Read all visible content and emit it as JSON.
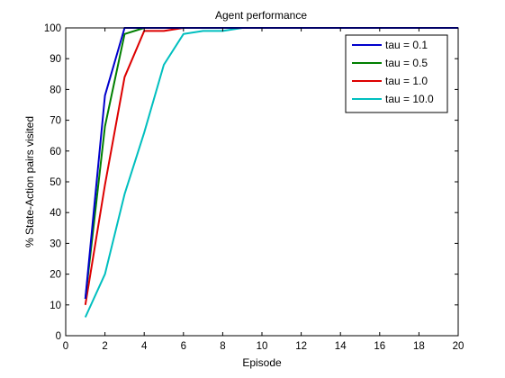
{
  "chart_data": {
    "type": "line",
    "title": "Agent performance",
    "xlabel": "Episode",
    "ylabel": "% State-Action pairs visited",
    "xlim": [
      0,
      20
    ],
    "ylim": [
      0,
      100
    ],
    "xticks": [
      0,
      2,
      4,
      6,
      8,
      10,
      12,
      14,
      16,
      18,
      20
    ],
    "yticks": [
      0,
      10,
      20,
      30,
      40,
      50,
      60,
      70,
      80,
      90,
      100
    ],
    "grid": false,
    "legend_position": "top-right",
    "series": [
      {
        "name": "tau = 0.1",
        "color": "#0000cc",
        "x": [
          1,
          2,
          3,
          4,
          5,
          6,
          7,
          8,
          9,
          10,
          11,
          12,
          13,
          14,
          15,
          16,
          17,
          18,
          19,
          20
        ],
        "y": [
          12,
          78,
          100,
          100,
          100,
          100,
          100,
          100,
          100,
          100,
          100,
          100,
          100,
          100,
          100,
          100,
          100,
          100,
          100,
          100
        ]
      },
      {
        "name": "tau = 0.5",
        "color": "#007f00",
        "x": [
          1,
          2,
          3,
          4,
          5,
          6,
          7,
          8,
          9,
          10,
          11,
          12,
          13,
          14,
          15,
          16,
          17,
          18,
          19,
          20
        ],
        "y": [
          12,
          68,
          98,
          100,
          100,
          100,
          100,
          100,
          100,
          100,
          100,
          100,
          100,
          100,
          100,
          100,
          100,
          100,
          100,
          100
        ]
      },
      {
        "name": "tau = 1.0",
        "color": "#dd0000",
        "x": [
          1,
          2,
          3,
          4,
          5,
          6,
          7,
          8,
          9,
          10,
          11,
          12,
          13,
          14,
          15,
          16,
          17,
          18,
          19,
          20
        ],
        "y": [
          10,
          49,
          84,
          99,
          99,
          100,
          100,
          100,
          100,
          100,
          100,
          100,
          100,
          100,
          100,
          100,
          100,
          100,
          100,
          100
        ]
      },
      {
        "name": "tau = 10.0",
        "color": "#00bfbf",
        "x": [
          1,
          2,
          3,
          4,
          5,
          6,
          7,
          8,
          9,
          10,
          11,
          12,
          13,
          14,
          15,
          16,
          17,
          18,
          19,
          20
        ],
        "y": [
          6,
          20,
          46,
          66,
          88,
          98,
          99,
          99,
          100,
          100,
          100,
          100,
          100,
          100,
          100,
          100,
          100,
          100,
          100,
          100
        ]
      }
    ]
  }
}
